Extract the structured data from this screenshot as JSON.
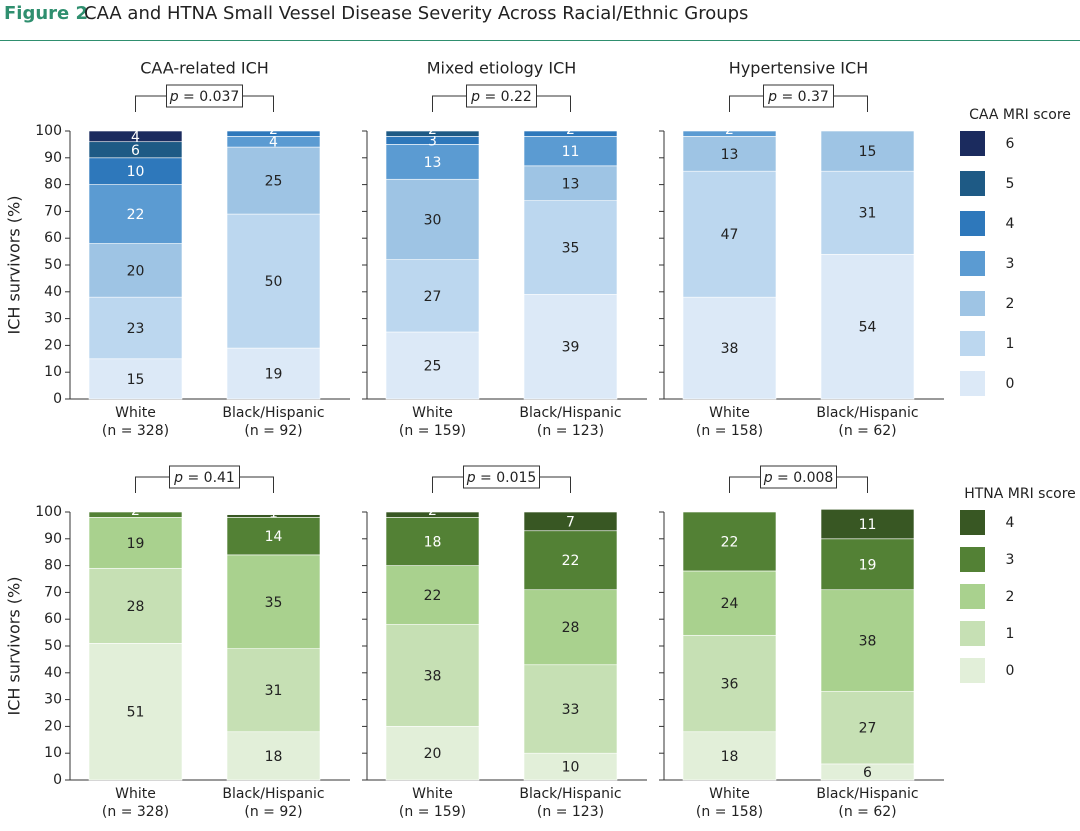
{
  "figure": {
    "label": "Figure 2",
    "title": "CAA and HTNA Small Vessel Disease Severity Across Racial/Ethnic Groups"
  },
  "colors": {
    "caa": [
      "#dce9f7",
      "#bcd7ef",
      "#9ec4e4",
      "#5b9bd2",
      "#2e78bb",
      "#1e5a85",
      "#1b2b5e"
    ],
    "htna": [
      "#e2efd9",
      "#c6e0b4",
      "#a9d18e",
      "#538135",
      "#385723"
    ]
  },
  "chart_data": [
    {
      "type": "bar",
      "stacked": true,
      "row": "CAA",
      "title": "CAA-related ICH",
      "ylabel": "ICH survivors (%)",
      "ylim": [
        0,
        100
      ],
      "yticks": [
        "0",
        "10",
        "20",
        "30",
        "40",
        "50",
        "60",
        "70",
        "80",
        "90",
        "100"
      ],
      "p_label": "p",
      "p_value": "= 0.037",
      "groups": [
        {
          "name": "White",
          "n": "(n = 328)",
          "values": [
            15,
            23,
            20,
            22,
            10,
            6,
            4
          ]
        },
        {
          "name": "Black/Hispanic",
          "n": "(n = 92)",
          "values": [
            19,
            50,
            25,
            4,
            2
          ]
        }
      ]
    },
    {
      "type": "bar",
      "stacked": true,
      "row": "CAA",
      "title": "Mixed etiology ICH",
      "ylim": [
        0,
        100
      ],
      "p_label": "p",
      "p_value": "= 0.22",
      "groups": [
        {
          "name": "White",
          "n": "(n = 159)",
          "values": [
            25,
            27,
            30,
            13,
            3,
            2
          ]
        },
        {
          "name": "Black/Hispanic",
          "n": "(n = 123)",
          "values": [
            39,
            35,
            13,
            11,
            2
          ]
        }
      ]
    },
    {
      "type": "bar",
      "stacked": true,
      "row": "CAA",
      "title": "Hypertensive ICH",
      "ylim": [
        0,
        100
      ],
      "p_label": "p",
      "p_value": "= 0.37",
      "groups": [
        {
          "name": "White",
          "n": "(n = 158)",
          "values": [
            38,
            47,
            13,
            2
          ]
        },
        {
          "name": "Black/Hispanic",
          "n": "(n = 62)",
          "values": [
            54,
            31,
            15
          ]
        }
      ]
    },
    {
      "type": "bar",
      "stacked": true,
      "row": "HTNA",
      "ylabel": "ICH survivors (%)",
      "ylim": [
        0,
        100
      ],
      "yticks": [
        "0",
        "10",
        "20",
        "30",
        "40",
        "50",
        "60",
        "70",
        "80",
        "90",
        "100"
      ],
      "p_label": "p",
      "p_value": "= 0.41",
      "groups": [
        {
          "name": "White",
          "n": "(n = 328)",
          "values": [
            51,
            28,
            19,
            2
          ]
        },
        {
          "name": "Black/Hispanic",
          "n": "(n = 92)",
          "values": [
            18,
            31,
            35,
            14,
            1
          ]
        }
      ]
    },
    {
      "type": "bar",
      "stacked": true,
      "row": "HTNA",
      "ylim": [
        0,
        100
      ],
      "p_label": "p",
      "p_value": "= 0.015",
      "groups": [
        {
          "name": "White",
          "n": "(n = 159)",
          "values": [
            20,
            38,
            22,
            18,
            2
          ]
        },
        {
          "name": "Black/Hispanic",
          "n": "(n = 123)",
          "values": [
            10,
            33,
            28,
            22,
            7
          ]
        }
      ]
    },
    {
      "type": "bar",
      "stacked": true,
      "row": "HTNA",
      "ylim": [
        0,
        100
      ],
      "p_label": "p",
      "p_value": "= 0.008",
      "groups": [
        {
          "name": "White",
          "n": "(n = 158)",
          "values": [
            18,
            36,
            24,
            22
          ]
        },
        {
          "name": "Black/Hispanic",
          "n": "(n = 62)",
          "values": [
            6,
            27,
            38,
            19,
            11
          ]
        }
      ]
    }
  ],
  "legends": [
    {
      "row": "CAA",
      "title": "CAA MRI score",
      "items": [
        "6",
        "5",
        "4",
        "3",
        "2",
        "1",
        "0"
      ]
    },
    {
      "row": "HTNA",
      "title": "HTNA MRI score",
      "items": [
        "4",
        "3",
        "2",
        "1",
        "0"
      ]
    }
  ]
}
